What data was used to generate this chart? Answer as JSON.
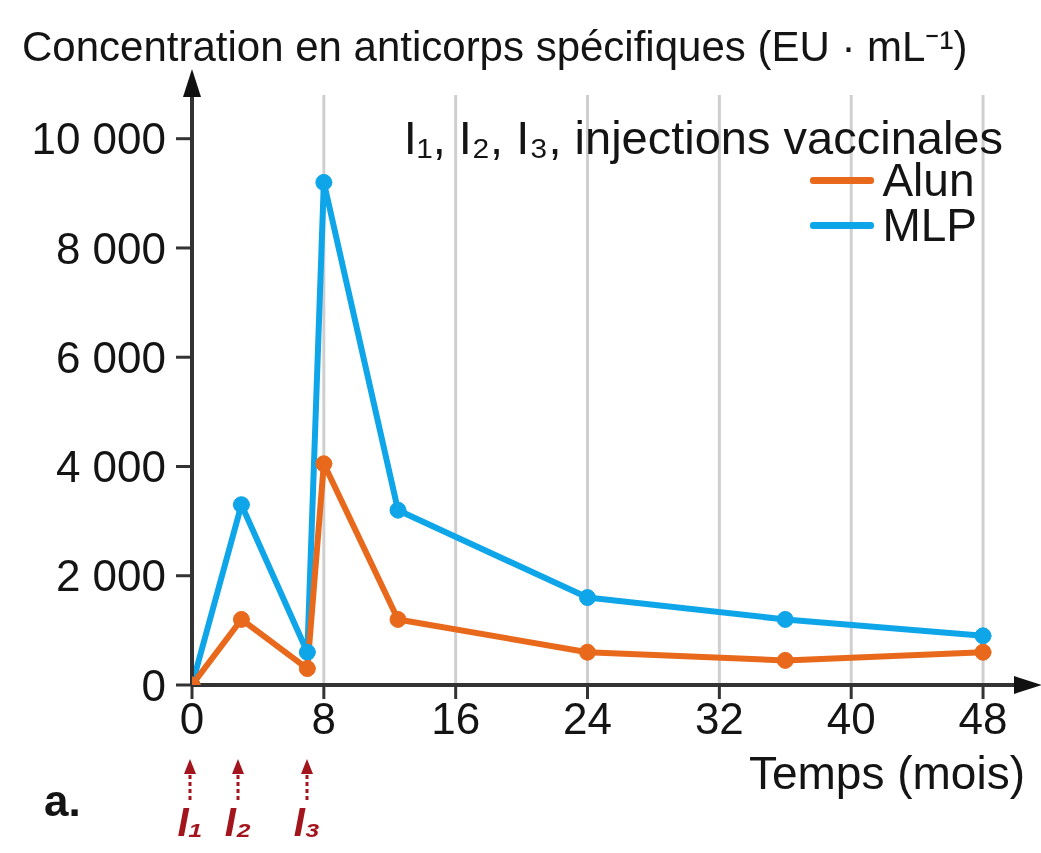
{
  "chart_data": {
    "type": "line",
    "xlabel": "Temps (mois)",
    "ylabel": "Concentration en anticorps spécifiques (EU · mL⁻¹)",
    "annotations": [
      "a.",
      "I₁, I₂, I₃, injections vaccinales",
      "I₁",
      "I₂",
      "I₃"
    ],
    "x": [
      0,
      3,
      7,
      8,
      12.5,
      24,
      36,
      48
    ],
    "series": [
      {
        "name": "Alun",
        "color": "#e8691b",
        "values": [
          0,
          1200,
          300,
          4050,
          1200,
          600,
          450,
          600
        ]
      },
      {
        "name": "MLP",
        "color": "#0fa5e9",
        "values": [
          0,
          3300,
          600,
          9200,
          3200,
          1600,
          1200,
          900
        ]
      }
    ],
    "xlim": [
      0,
      50
    ],
    "xticks": [
      0,
      8,
      16,
      24,
      32,
      40,
      48
    ],
    "ylim": [
      0,
      10800
    ],
    "yticks": [
      0,
      {
        "value": 2000,
        "label": "2 000"
      },
      {
        "value": 4000,
        "label": "4 000"
      },
      {
        "value": 6000,
        "label": "6 000"
      },
      {
        "value": 8000,
        "label": "8 000"
      },
      {
        "value": 10000,
        "label": "10 000"
      }
    ],
    "grid": "x",
    "legend": "top right",
    "marker": "circle",
    "line_style": "solid"
  }
}
